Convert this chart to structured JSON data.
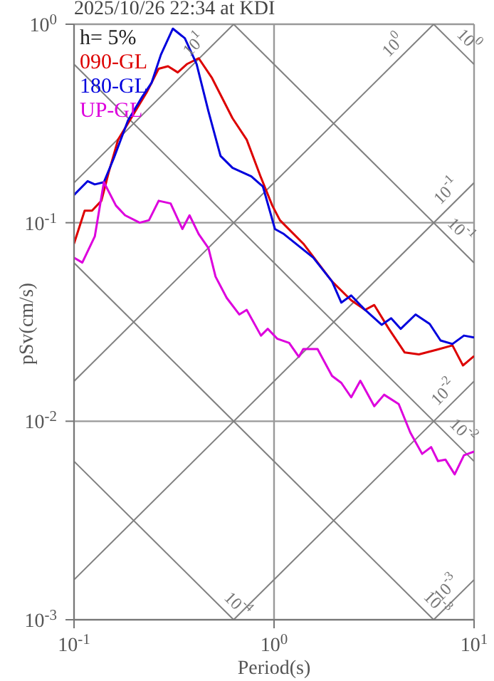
{
  "chart_data": {
    "type": "line",
    "title": "2025/10/26 22:34 at KDI",
    "xlabel": "Period(s)",
    "ylabel": "pSv(cm/s)",
    "log": "xy",
    "grid": true,
    "legend": "top left",
    "marker": "none",
    "line_style": "solid",
    "xlim": [
      0.1,
      10
    ],
    "ylim": [
      0.001,
      1
    ],
    "xticks": [
      {
        "value": 0.1,
        "label": "10$^{-1}$"
      },
      {
        "value": 1,
        "label": "10$^{0}$"
      },
      {
        "value": 10,
        "label": "10$^{1}$"
      }
    ],
    "yticks": [
      {
        "value": 0.001,
        "label": "10$^{-3}$"
      },
      {
        "value": 0.01,
        "label": "10$^{-2}$"
      },
      {
        "value": 0.1,
        "label": "10$^{-1}$"
      },
      {
        "value": 1,
        "label": "10$^{0}$"
      }
    ],
    "annotations": [
      "h= 5%",
      {
        "text": "10$^{1}$",
        "x": 0.443,
        "y": 0.705
      },
      {
        "text": "10$^{0}$",
        "x": 4.4,
        "y": 0.7
      },
      {
        "text": "10$^{0}$",
        "x": 8.4,
        "y": 0.748
      },
      {
        "text": "10$^{-1}$",
        "x": 8.1,
        "y": 0.129
      },
      {
        "text": "10$^{-1}$",
        "x": 7.66,
        "y": 0.082
      },
      {
        "text": "10$^{-2}$",
        "x": 7.85,
        "y": 0.0125
      },
      {
        "text": "10$^{-2}$",
        "x": 7.85,
        "y": 0.008
      },
      {
        "text": "10$^{-4}$",
        "x": 0.586,
        "y": 0.00107
      },
      {
        "text": "10$^{-3}$",
        "x": 5.83,
        "y": 0.00108
      },
      {
        "text": "10$^{-3}$",
        "x": 8.1,
        "y": 0.00129
      }
    ],
    "series": [
      {
        "color": "#808080",
        "x": [
          0.1,
          0.628
        ],
        "values": [
          0.159,
          1
        ]
      },
      {
        "color": "#808080",
        "x": [
          0.1,
          6.28
        ],
        "values": [
          0.0159,
          1
        ]
      },
      {
        "color": "#808080",
        "x": [
          0.1,
          10
        ],
        "values": [
          0.00159,
          0.159
        ]
      },
      {
        "color": "#808080",
        "x": [
          0.628,
          10
        ],
        "values": [
          0.001,
          0.0159
        ]
      },
      {
        "color": "#808080",
        "x": [
          6.28,
          10
        ],
        "values": [
          0.001,
          0.00159
        ]
      },
      {
        "color": "#808080",
        "x": [
          6.28,
          10
        ],
        "values": [
          1,
          0.628
        ]
      },
      {
        "color": "#808080",
        "x": [
          0.628,
          10
        ],
        "values": [
          1,
          0.0628
        ]
      },
      {
        "color": "#808080",
        "x": [
          0.1,
          10
        ],
        "values": [
          0.628,
          0.00628
        ]
      },
      {
        "color": "#808080",
        "x": [
          0.1,
          6.28
        ],
        "values": [
          0.0628,
          0.001
        ]
      },
      {
        "color": "#808080",
        "x": [
          0.1,
          0.628
        ],
        "values": [
          0.00628,
          0.001
        ]
      },
      {
        "name": "090-GL",
        "color": "#dd0000",
        "x": [
          0.1,
          0.113,
          0.123,
          0.137,
          0.149,
          0.166,
          0.196,
          0.231,
          0.265,
          0.295,
          0.33,
          0.368,
          0.42,
          0.49,
          0.62,
          0.73,
          0.86,
          0.98,
          1.07,
          1.4,
          1.95,
          2.43,
          2.85,
          3.17,
          3.75,
          4.5,
          5.3,
          6.5,
          7.8,
          8.8,
          10
        ],
        "values": [
          0.0785,
          0.115,
          0.115,
          0.129,
          0.179,
          0.262,
          0.345,
          0.454,
          0.597,
          0.614,
          0.572,
          0.631,
          0.674,
          0.535,
          0.336,
          0.262,
          0.169,
          0.122,
          0.103,
          0.0785,
          0.0506,
          0.0407,
          0.0364,
          0.0385,
          0.0292,
          0.0222,
          0.0217,
          0.0229,
          0.0241,
          0.0191,
          0.0213
        ]
      },
      {
        "name": "180-GL",
        "color": "#0000dd",
        "x": [
          0.1,
          0.117,
          0.127,
          0.141,
          0.158,
          0.186,
          0.219,
          0.244,
          0.272,
          0.312,
          0.358,
          0.41,
          0.47,
          0.54,
          0.62,
          0.77,
          0.88,
          1.01,
          1.12,
          1.57,
          1.95,
          2.17,
          2.43,
          2.85,
          3.45,
          3.85,
          4.3,
          5.1,
          6.0,
          6.8,
          7.8,
          8.9,
          10
        ],
        "values": [
          0.138,
          0.162,
          0.156,
          0.16,
          0.211,
          0.327,
          0.43,
          0.506,
          0.703,
          0.95,
          0.85,
          0.63,
          0.364,
          0.217,
          0.189,
          0.171,
          0.152,
          0.093,
          0.0877,
          0.0667,
          0.0506,
          0.0396,
          0.043,
          0.0364,
          0.0306,
          0.033,
          0.0292,
          0.0345,
          0.0309,
          0.0255,
          0.0245,
          0.027,
          0.0264
        ]
      },
      {
        "name": "UP-GL",
        "color": "#dd00dd",
        "x": [
          0.1,
          0.11,
          0.127,
          0.141,
          0.162,
          0.18,
          0.213,
          0.237,
          0.265,
          0.304,
          0.348,
          0.378,
          0.42,
          0.47,
          0.51,
          0.58,
          0.67,
          0.73,
          0.86,
          0.93,
          1.04,
          1.19,
          1.33,
          1.4,
          1.65,
          1.95,
          2.17,
          2.43,
          2.7,
          3.17,
          3.55,
          4.2,
          4.8,
          5.5,
          6.1,
          6.6,
          7.2,
          8.0,
          8.9,
          10
        ],
        "values": [
          0.0666,
          0.063,
          0.0853,
          0.16,
          0.122,
          0.109,
          0.1,
          0.103,
          0.129,
          0.125,
          0.093,
          0.109,
          0.0877,
          0.0744,
          0.0535,
          0.0418,
          0.0345,
          0.0364,
          0.027,
          0.0292,
          0.026,
          0.0248,
          0.0211,
          0.0231,
          0.0231,
          0.0169,
          0.0156,
          0.0132,
          0.016,
          0.0119,
          0.0136,
          0.0122,
          0.00877,
          0.00685,
          0.00741,
          0.0063,
          0.0064,
          0.0054,
          0.00674,
          0.00703
        ]
      }
    ]
  }
}
